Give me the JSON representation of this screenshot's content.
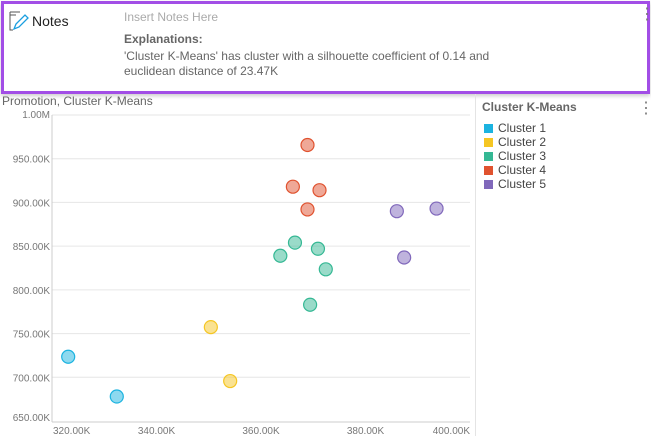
{
  "notes": {
    "title": "Notes",
    "placeholder": "Insert Notes Here",
    "explanations_heading": "Explanations:",
    "explanation_text": "'Cluster K-Means' has cluster with a silhouette coefficient of 0.14 and euclidean distance of 23.47K"
  },
  "chart_data": {
    "type": "scatter",
    "title": "Promotion, Cluster K-Means",
    "xlim": [
      320000,
      400000
    ],
    "ylim": [
      650000,
      1000000
    ],
    "x_ticks": [
      "320.00K",
      "340.00K",
      "360.00K",
      "380.00K",
      "400.00K"
    ],
    "y_ticks": [
      "1.00M",
      "950.00K",
      "900.00K",
      "850.00K",
      "800.00K",
      "750.00K",
      "700.00K",
      "650.00K"
    ],
    "grid": true,
    "legend_title": "Cluster K-Means",
    "legend_position": "right",
    "series": [
      {
        "name": "Cluster 1",
        "color": "#1bb3e0",
        "points": [
          [
            323100,
            723500
          ],
          [
            332400,
            678000
          ]
        ]
      },
      {
        "name": "Cluster 2",
        "color": "#f5c623",
        "points": [
          [
            350400,
            757400
          ],
          [
            354100,
            695700
          ]
        ]
      },
      {
        "name": "Cluster 3",
        "color": "#35b894",
        "points": [
          [
            363700,
            839000
          ],
          [
            366500,
            854000
          ],
          [
            370900,
            847000
          ],
          [
            372400,
            823500
          ],
          [
            369400,
            783000
          ]
        ]
      },
      {
        "name": "Cluster 4",
        "color": "#e0522f",
        "points": [
          [
            368900,
            965700
          ],
          [
            366100,
            918000
          ],
          [
            371200,
            914000
          ],
          [
            368900,
            892000
          ]
        ]
      },
      {
        "name": "Cluster 5",
        "color": "#8068bb",
        "points": [
          [
            386000,
            890000
          ],
          [
            393600,
            893000
          ],
          [
            387400,
            837000
          ]
        ]
      }
    ]
  }
}
